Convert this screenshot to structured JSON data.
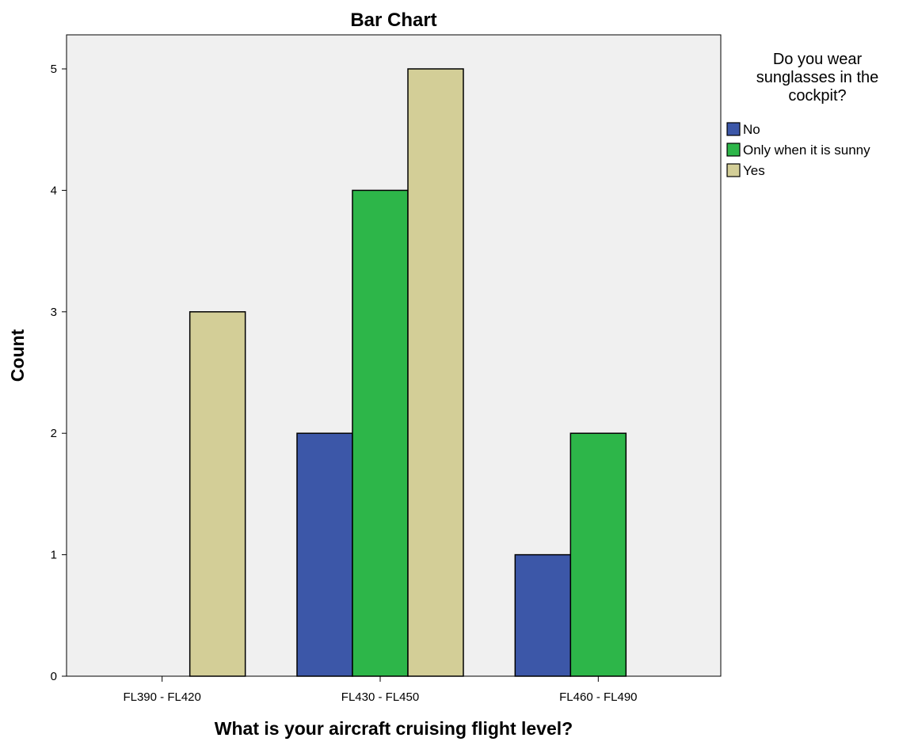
{
  "chart_data": {
    "type": "bar",
    "title": "Bar Chart",
    "xlabel": "What is your aircraft cruising flight level?",
    "ylabel": "Count",
    "categories": [
      "FL390 - FL420",
      "FL430 - FL450",
      "FL460 - FL490"
    ],
    "ylim": [
      0,
      5.5
    ],
    "yticks": [
      0,
      1,
      2,
      3,
      4,
      5
    ],
    "grid": false,
    "legend": {
      "title_lines": [
        "Do you wear",
        "sunglasses in the",
        "cockpit?"
      ],
      "placement": "right"
    },
    "series": [
      {
        "name": "No",
        "color": "#3c57a8",
        "values": [
          0,
          2,
          1
        ]
      },
      {
        "name": "Only when it is sunny",
        "color": "#2db649",
        "values": [
          0,
          4,
          2
        ]
      },
      {
        "name": "Yes",
        "color": "#d3ce97",
        "values": [
          3,
          5,
          0
        ]
      }
    ],
    "plot_background": "#f0f0f0"
  }
}
